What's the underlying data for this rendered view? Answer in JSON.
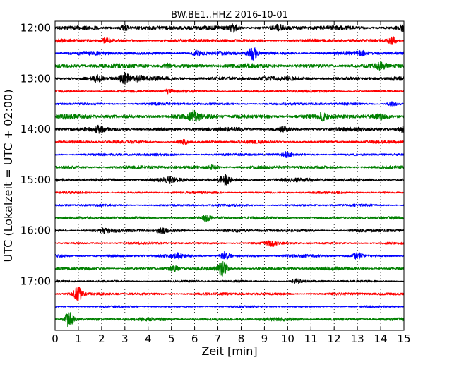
{
  "chart_data": {
    "type": "line",
    "title": "BW.BE1..HHZ 2016-10-01",
    "xlabel": "Zeit  [min]",
    "ylabel": "UTC (Lokalzeit = UTC + 02:00)",
    "xlim": [
      0,
      15
    ],
    "x_ticks": [
      "0",
      "1",
      "2",
      "3",
      "4",
      "5",
      "6",
      "7",
      "8",
      "9",
      "10",
      "11",
      "12",
      "13",
      "14",
      "15"
    ],
    "y_tick_labels": [
      "12:00",
      "13:00",
      "14:00",
      "15:00",
      "16:00",
      "17:00"
    ],
    "grid": true,
    "trace_colors": [
      "#000000",
      "#ff0000",
      "#0000ff",
      "#008000"
    ],
    "series": [
      {
        "start": "12:00",
        "amplitude": 2.5,
        "events": [
          [
            7.7,
            6
          ],
          [
            3.0,
            3
          ],
          [
            9.6,
            3
          ],
          [
            15.0,
            4
          ]
        ]
      },
      {
        "start": "12:15",
        "amplitude": 2.0,
        "events": [
          [
            14.5,
            5
          ],
          [
            2.2,
            2.5
          ]
        ]
      },
      {
        "start": "12:30",
        "amplitude": 2.3,
        "events": [
          [
            8.5,
            8
          ],
          [
            6.1,
            3
          ],
          [
            13.2,
            2.5
          ]
        ]
      },
      {
        "start": "12:45",
        "amplitude": 2.6,
        "events": [
          [
            4.8,
            2.5
          ],
          [
            14.0,
            3
          ]
        ]
      },
      {
        "start": "13:00",
        "amplitude": 2.6,
        "events": [
          [
            3.0,
            8
          ],
          [
            1.8,
            3
          ],
          [
            3.6,
            3
          ]
        ]
      },
      {
        "start": "13:15",
        "amplitude": 1.6,
        "events": [
          [
            4.9,
            2.5
          ]
        ]
      },
      {
        "start": "13:30",
        "amplitude": 1.6,
        "events": [
          [
            14.5,
            2.5
          ]
        ]
      },
      {
        "start": "13:45",
        "amplitude": 2.8,
        "events": [
          [
            6.0,
            7
          ],
          [
            11.5,
            3
          ],
          [
            14.0,
            3
          ]
        ]
      },
      {
        "start": "14:00",
        "amplitude": 2.3,
        "events": [
          [
            1.9,
            3
          ],
          [
            9.8,
            3
          ],
          [
            15.0,
            4
          ]
        ]
      },
      {
        "start": "14:15",
        "amplitude": 1.8,
        "events": [
          [
            5.5,
            3
          ]
        ]
      },
      {
        "start": "14:30",
        "amplitude": 1.6,
        "events": [
          [
            10.0,
            3
          ]
        ]
      },
      {
        "start": "14:45",
        "amplitude": 2.0,
        "events": [
          [
            6.8,
            2.5
          ]
        ]
      },
      {
        "start": "15:00",
        "amplitude": 2.3,
        "events": [
          [
            7.3,
            7
          ],
          [
            4.9,
            2.5
          ]
        ]
      },
      {
        "start": "15:15",
        "amplitude": 1.4,
        "events": []
      },
      {
        "start": "15:30",
        "amplitude": 1.4,
        "events": []
      },
      {
        "start": "15:45",
        "amplitude": 1.8,
        "events": [
          [
            6.5,
            3
          ]
        ]
      },
      {
        "start": "16:00",
        "amplitude": 2.0,
        "events": [
          [
            4.6,
            3
          ],
          [
            2.1,
            2.5
          ]
        ]
      },
      {
        "start": "16:15",
        "amplitude": 1.4,
        "events": [
          [
            9.3,
            4
          ]
        ]
      },
      {
        "start": "16:30",
        "amplitude": 1.8,
        "events": [
          [
            7.3,
            5
          ],
          [
            13.0,
            4
          ],
          [
            5.3,
            2.5
          ]
        ]
      },
      {
        "start": "16:45",
        "amplitude": 2.0,
        "events": [
          [
            7.2,
            10
          ],
          [
            5.1,
            3
          ]
        ]
      },
      {
        "start": "17:00",
        "amplitude": 1.3,
        "events": [
          [
            10.4,
            3
          ]
        ]
      },
      {
        "start": "17:15",
        "amplitude": 1.6,
        "events": [
          [
            1.0,
            9
          ]
        ]
      },
      {
        "start": "17:30",
        "amplitude": 1.2,
        "events": []
      },
      {
        "start": "17:45",
        "amplitude": 2.0,
        "events": [
          [
            0.6,
            10
          ]
        ]
      }
    ]
  }
}
